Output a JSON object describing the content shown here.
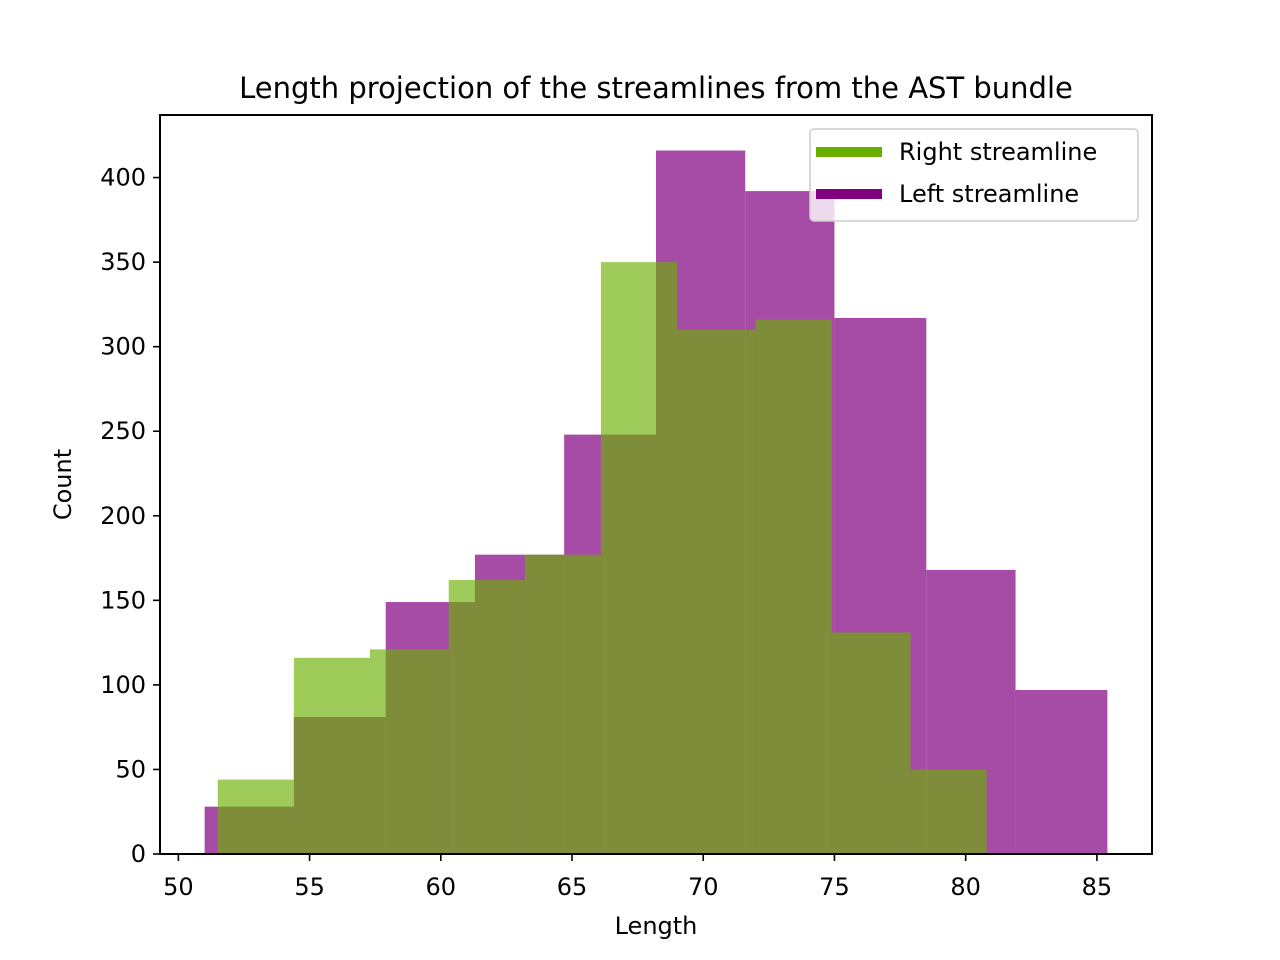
{
  "chart_data": {
    "type": "histogram",
    "title": "Length projection of the streamlines from the AST bundle",
    "xlabel": "Length",
    "ylabel": "Count",
    "xlim": [
      49.3,
      87.1
    ],
    "ylim": [
      0,
      437
    ],
    "xticks": [
      50,
      55,
      60,
      65,
      70,
      75,
      80,
      85
    ],
    "yticks": [
      0,
      50,
      100,
      150,
      200,
      250,
      300,
      350,
      400
    ],
    "legend_position": "top-right",
    "grid": false,
    "series": [
      {
        "name": "Left streamline",
        "color": "#800080",
        "opacity": 0.7,
        "bins": [
          {
            "x0": 51.0,
            "x1": 54.4,
            "count": 28
          },
          {
            "x0": 54.4,
            "x1": 57.9,
            "count": 81
          },
          {
            "x0": 57.9,
            "x1": 61.3,
            "count": 149
          },
          {
            "x0": 61.3,
            "x1": 64.7,
            "count": 177
          },
          {
            "x0": 64.7,
            "x1": 68.2,
            "count": 248
          },
          {
            "x0": 68.2,
            "x1": 71.6,
            "count": 416
          },
          {
            "x0": 71.6,
            "x1": 75.0,
            "count": 392
          },
          {
            "x0": 75.0,
            "x1": 78.5,
            "count": 317
          },
          {
            "x0": 78.5,
            "x1": 81.9,
            "count": 168
          },
          {
            "x0": 81.9,
            "x1": 85.4,
            "count": 97
          }
        ]
      },
      {
        "name": "Right streamline",
        "color": "#6aaf00",
        "opacity": 0.65,
        "bins": [
          {
            "x0": 51.5,
            "x1": 54.4,
            "count": 44
          },
          {
            "x0": 54.4,
            "x1": 57.3,
            "count": 116
          },
          {
            "x0": 57.3,
            "x1": 60.3,
            "count": 121
          },
          {
            "x0": 60.3,
            "x1": 63.2,
            "count": 162
          },
          {
            "x0": 63.2,
            "x1": 66.1,
            "count": 177
          },
          {
            "x0": 66.1,
            "x1": 69.0,
            "count": 350
          },
          {
            "x0": 69.0,
            "x1": 72.0,
            "count": 310
          },
          {
            "x0": 72.0,
            "x1": 74.9,
            "count": 316
          },
          {
            "x0": 74.9,
            "x1": 77.9,
            "count": 131
          },
          {
            "x0": 77.9,
            "x1": 80.8,
            "count": 50
          }
        ]
      }
    ],
    "legend_order": [
      "Right streamline",
      "Left streamline"
    ]
  }
}
